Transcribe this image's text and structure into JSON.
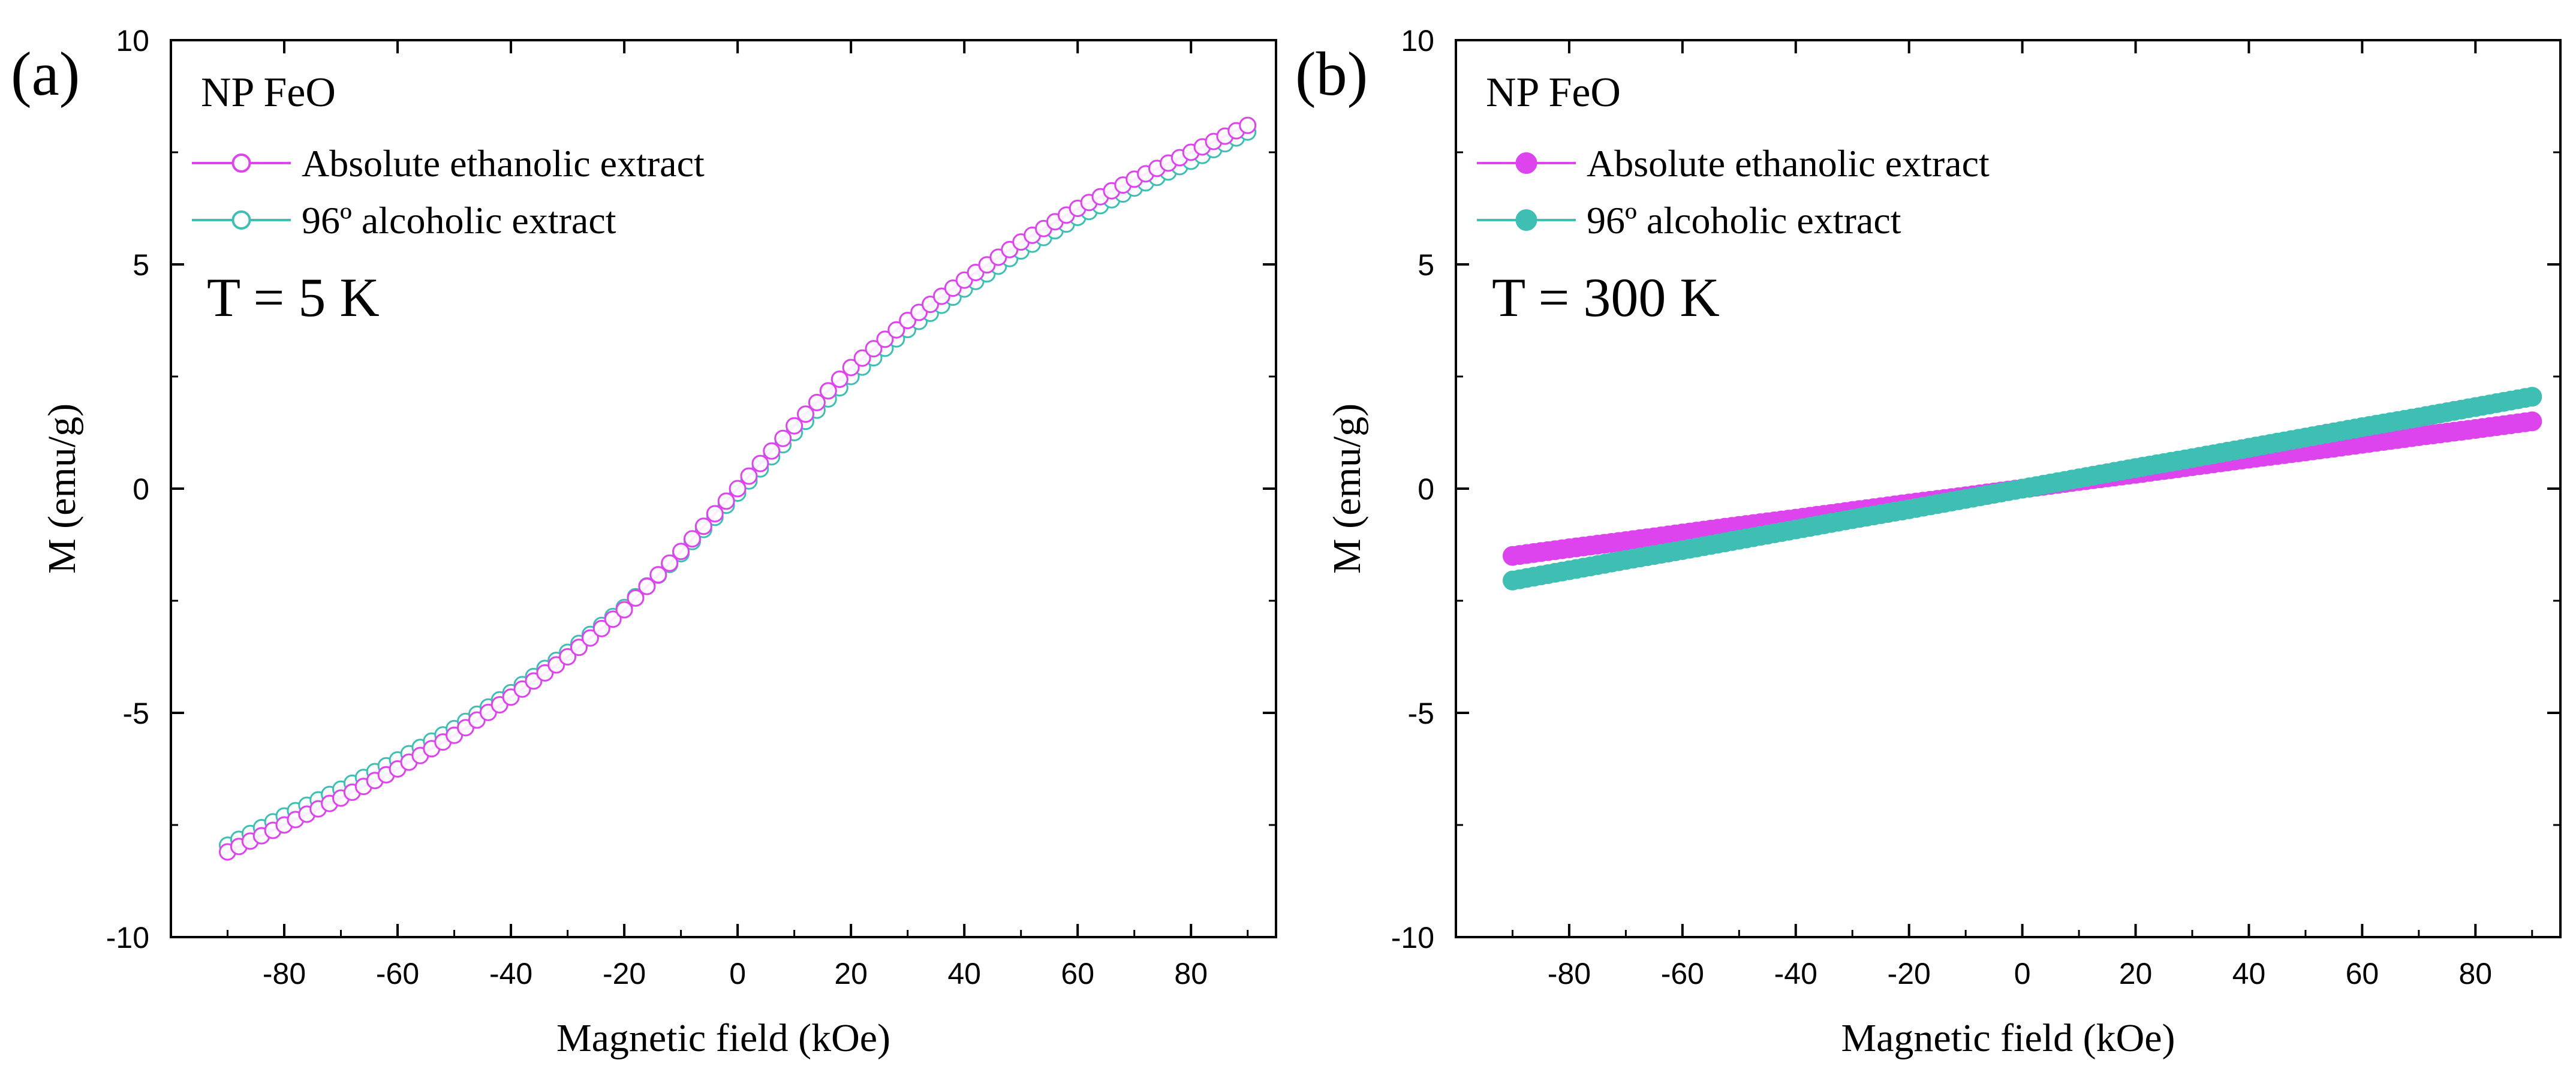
{
  "figure": {
    "panels": [
      {
        "panel_label": "(a)",
        "sample_label": "NP FeO",
        "temperature_label": "T = 5 K",
        "marker_style": "open"
      },
      {
        "panel_label": "(b)",
        "sample_label": "NP FeO",
        "temperature_label": "T = 300 K",
        "marker_style": "filled"
      }
    ],
    "colors": {
      "absolute_ethanolic": "#dd44ee",
      "alcoholic_96": "#3fbfb4",
      "axis": "#000000"
    }
  },
  "chart_data": [
    {
      "type": "line",
      "title": "",
      "xlabel": "Magnetic field (kOe)",
      "ylabel": "M (emu/g)",
      "xlim": [
        -100,
        95
      ],
      "ylim": [
        -10,
        10
      ],
      "xticks": [
        -80,
        -60,
        -40,
        -20,
        0,
        20,
        40,
        60,
        80
      ],
      "yticks": [
        -10,
        -5,
        0,
        5,
        10
      ],
      "x": [
        -90,
        -80,
        -70,
        -60,
        -50,
        -40,
        -30,
        -20,
        -10,
        0,
        10,
        20,
        30,
        40,
        50,
        60,
        70,
        80,
        90
      ],
      "series": [
        {
          "name": "Absolute ethanolic extract",
          "color": "#dd44ee",
          "values": [
            -8.1,
            -7.5,
            -6.9,
            -6.25,
            -5.5,
            -4.65,
            -3.75,
            -2.7,
            -1.4,
            0.0,
            1.4,
            2.7,
            3.75,
            4.65,
            5.5,
            6.25,
            6.9,
            7.5,
            8.1
          ]
        },
        {
          "name": "96º alcoholic extract",
          "color": "#3fbfb4",
          "values": [
            -7.95,
            -7.3,
            -6.7,
            -6.05,
            -5.35,
            -4.55,
            -3.65,
            -2.65,
            -1.45,
            -0.1,
            1.25,
            2.5,
            3.55,
            4.45,
            5.3,
            6.05,
            6.7,
            7.3,
            7.95
          ]
        }
      ],
      "legend": "top-left"
    },
    {
      "type": "line",
      "title": "",
      "xlabel": "Magnetic field (kOe)",
      "ylabel": "M (emu/g)",
      "xlim": [
        -100,
        95
      ],
      "ylim": [
        -10,
        10
      ],
      "xticks": [
        -80,
        -60,
        -40,
        -20,
        0,
        20,
        40,
        60,
        80
      ],
      "yticks": [
        -10,
        -5,
        0,
        5,
        10
      ],
      "x": [
        -90,
        -80,
        -70,
        -60,
        -50,
        -40,
        -30,
        -20,
        -10,
        0,
        10,
        20,
        30,
        40,
        50,
        60,
        70,
        80,
        90
      ],
      "series": [
        {
          "name": "Absolute ethanolic extract",
          "color": "#dd44ee",
          "values": [
            -1.5,
            -1.33,
            -1.17,
            -1.0,
            -0.83,
            -0.67,
            -0.5,
            -0.33,
            -0.17,
            0.0,
            0.17,
            0.33,
            0.5,
            0.67,
            0.83,
            1.0,
            1.17,
            1.33,
            1.5
          ]
        },
        {
          "name": "96º alcoholic extract",
          "color": "#3fbfb4",
          "values": [
            -2.05,
            -1.82,
            -1.59,
            -1.37,
            -1.14,
            -0.91,
            -0.68,
            -0.46,
            -0.23,
            0.0,
            0.23,
            0.46,
            0.68,
            0.91,
            1.14,
            1.37,
            1.59,
            1.82,
            2.05
          ]
        }
      ],
      "legend": "top-left"
    }
  ]
}
